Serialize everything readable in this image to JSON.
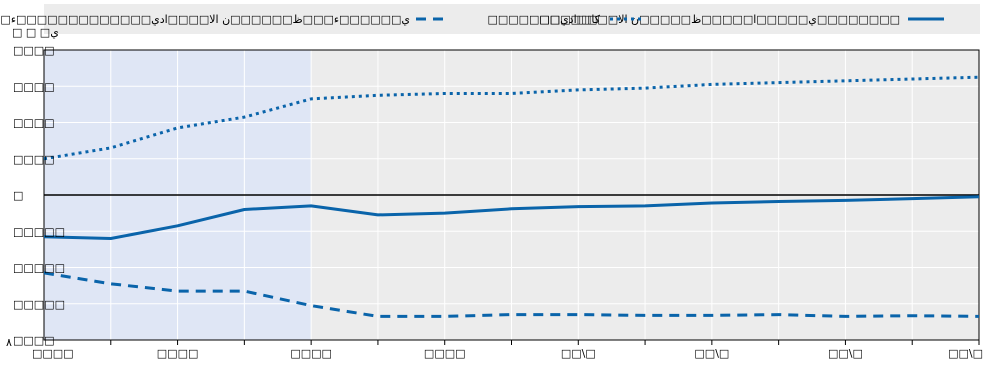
{
  "chart_data": {
    "type": "line",
    "title": "",
    "xlabel": "",
    "ylabel": "",
    "unit_label": "□ □ □ي",
    "x_categories": [
      "2020",
      "2021",
      "2022",
      "2023",
      "2024",
      "2025",
      "2026",
      "2027",
      "2028",
      "2029",
      "2030",
      "2031",
      "2032",
      "2033",
      "2034"
    ],
    "x_tick_labels": [
      "□□□□",
      "□□□□",
      "□□□□",
      "□□□□",
      "□□\\□",
      "□□\\□",
      "□□\\□",
      "□□\\□"
    ],
    "x_tick_label_positions": [
      0,
      2,
      4,
      6,
      8,
      10,
      12,
      14
    ],
    "x_tick_label_bottom_left": "٨",
    "ylim": [
      -4,
      4
    ],
    "y_ticks": [
      4,
      3,
      2,
      1,
      0,
      -1,
      -2,
      -3,
      -4
    ],
    "y_tick_labels": [
      "□□□□",
      "□□□□",
      "□□□□",
      "□□□□",
      "□",
      "□□□□□",
      "□□□□□",
      "□□□□□",
      "□□□□"
    ],
    "y_zero_line": true,
    "forecast_start_index": 4,
    "grid": true,
    "legend_position": "top",
    "colors": {
      "series": "#0a64aa",
      "history_bg": "#dfe6f5",
      "forecast_bg": "#ececec",
      "legend_bg": "#ececec",
      "grid": "#ffffff",
      "axis": "#000000"
    },
    "series": [
      {
        "name": "□□ي□□□□□ا□□□□□ظ□□□□□ن الا□□□□ادي□□□□□□□□",
        "style": "solid",
        "values": [
          -1.15,
          -1.2,
          -0.85,
          -0.4,
          -0.3,
          -0.55,
          -0.5,
          -0.38,
          -0.32,
          -0.3,
          -0.22,
          -0.18,
          -0.15,
          -0.1,
          -0.05
        ]
      },
      {
        "name": "□□□□□□□□□□كا",
        "style": "dotted",
        "values": [
          1,
          1.3,
          1.85,
          2.15,
          2.65,
          2.75,
          2.8,
          2.8,
          2.9,
          2.95,
          3.05,
          3.1,
          3.15,
          3.2,
          3.25
        ]
      },
      {
        "name": "□□ي□□□□□□ء□□□ظ□□□□□□ن الا□□□□ادي□□□□□□□□□□□□□ء□□□ي□□□كا",
        "style": "dashed",
        "values": [
          -2.15,
          -2.45,
          -2.65,
          -2.65,
          -3.05,
          -3.35,
          -3.35,
          -3.3,
          -3.3,
          -3.32,
          -3.32,
          -3.3,
          -3.35,
          -3.33,
          -3.35
        ]
      }
    ]
  }
}
